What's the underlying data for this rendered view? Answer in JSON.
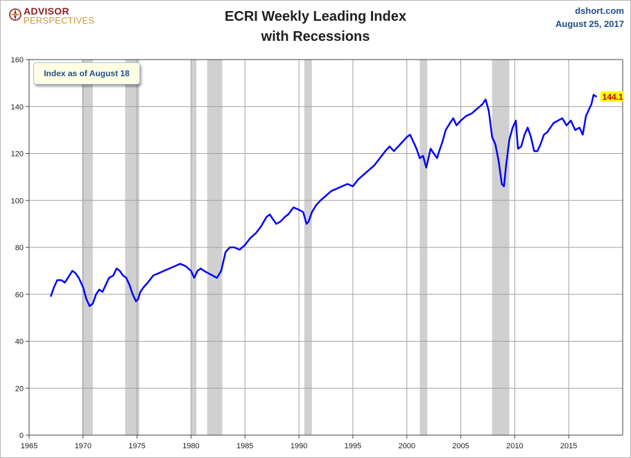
{
  "header": {
    "logo_top": "ADVISOR",
    "logo_bottom": "PERSPECTIVES",
    "title_line1": "ECRI Weekly Leading Index",
    "title_line2": "with Recessions",
    "source": "dshort.com",
    "date": "August 25, 2017",
    "note": "Index as of August 18",
    "last_value_label": "144.1"
  },
  "colors": {
    "line": "#0000ff",
    "recession": "#d0d0d0",
    "grid": "#a0a0a0",
    "label_bg": "#ffff00",
    "label_text": "#c00000"
  },
  "chart_data": {
    "type": "line",
    "title": "ECRI Weekly Leading Index with Recessions",
    "xlabel": "",
    "ylabel": "",
    "xlim": [
      1965,
      2020
    ],
    "ylim": [
      0,
      160
    ],
    "x_ticks": [
      1965,
      1970,
      1975,
      1980,
      1985,
      1990,
      1995,
      2000,
      2005,
      2010,
      2015
    ],
    "y_ticks": [
      0,
      20,
      40,
      60,
      80,
      100,
      120,
      140,
      160
    ],
    "grid": true,
    "recessions": [
      [
        1969.9,
        1970.9
      ],
      [
        1973.9,
        1975.2
      ],
      [
        1980.0,
        1980.5
      ],
      [
        1981.5,
        1982.9
      ],
      [
        1990.5,
        1991.2
      ],
      [
        2001.2,
        2001.9
      ],
      [
        2007.9,
        2009.5
      ]
    ],
    "series": [
      {
        "x": [
          1967.0,
          1967.3,
          1967.6,
          1968.0,
          1968.3,
          1968.6,
          1969.0,
          1969.3,
          1969.6,
          1970.0,
          1970.3,
          1970.6,
          1970.9,
          1971.2,
          1971.5,
          1971.8,
          1972.1,
          1972.4,
          1972.8,
          1973.1,
          1973.4,
          1973.7,
          1974.0,
          1974.3,
          1974.6,
          1974.9,
          1975.1,
          1975.3,
          1975.6,
          1976.0,
          1976.5,
          1977.0,
          1977.5,
          1978.0,
          1978.5,
          1979.0,
          1979.5,
          1980.0,
          1980.3,
          1980.6,
          1980.9,
          1981.2,
          1981.6,
          1982.0,
          1982.4,
          1982.8,
          1983.2,
          1983.6,
          1984.0,
          1984.5,
          1985.0,
          1985.5,
          1986.0,
          1986.5,
          1987.0,
          1987.3,
          1987.6,
          1987.9,
          1988.3,
          1988.7,
          1989.0,
          1989.5,
          1990.0,
          1990.4,
          1990.7,
          1990.9,
          1991.2,
          1991.6,
          1992.0,
          1992.5,
          1993.0,
          1993.5,
          1994.0,
          1994.5,
          1995.0,
          1995.5,
          1996.0,
          1996.5,
          1997.0,
          1997.5,
          1998.0,
          1998.4,
          1998.8,
          1999.2,
          1999.6,
          2000.0,
          2000.3,
          2000.6,
          2000.9,
          2001.2,
          2001.5,
          2001.8,
          2002.0,
          2002.2,
          2002.5,
          2002.8,
          2003.0,
          2003.3,
          2003.6,
          2004.0,
          2004.3,
          2004.6,
          2005.0,
          2005.5,
          2006.0,
          2006.5,
          2007.0,
          2007.3,
          2007.6,
          2007.9,
          2008.2,
          2008.5,
          2008.8,
          2009.0,
          2009.2,
          2009.5,
          2009.8,
          2010.1,
          2010.3,
          2010.6,
          2010.9,
          2011.2,
          2011.5,
          2011.8,
          2012.1,
          2012.4,
          2012.7,
          2013.0,
          2013.3,
          2013.6,
          2014.0,
          2014.4,
          2014.8,
          2015.2,
          2015.6,
          2016.0,
          2016.3,
          2016.6,
          2016.9,
          2017.1,
          2017.3,
          2017.6
        ],
        "values": [
          59,
          63,
          66,
          66,
          65,
          67,
          70,
          69,
          67,
          63,
          58,
          55,
          56,
          60,
          62,
          61,
          64,
          67,
          68,
          71,
          70,
          68,
          67,
          64,
          60,
          57,
          58,
          61,
          63,
          65,
          68,
          69,
          70,
          71,
          72,
          73,
          72,
          70,
          67,
          70,
          71,
          70,
          69,
          68,
          67,
          70,
          78,
          80,
          80,
          79,
          81,
          84,
          86,
          89,
          93,
          94,
          92,
          90,
          91,
          93,
          94,
          97,
          96,
          95,
          90,
          91,
          95,
          98,
          100,
          102,
          104,
          105,
          106,
          107,
          106,
          109,
          111,
          113,
          115,
          118,
          121,
          123,
          121,
          123,
          125,
          127,
          128,
          125,
          122,
          118,
          119,
          114,
          118,
          122,
          120,
          118,
          121,
          125,
          130,
          133,
          135,
          132,
          134,
          136,
          137,
          139,
          141,
          143,
          138,
          127,
          124,
          117,
          107,
          106,
          115,
          126,
          131,
          134,
          122,
          123,
          128,
          131,
          127,
          121,
          121,
          124,
          128,
          129,
          131,
          133,
          134,
          135,
          132,
          134,
          130,
          131,
          128,
          136,
          139,
          141,
          145,
          144.1
        ]
      }
    ]
  }
}
